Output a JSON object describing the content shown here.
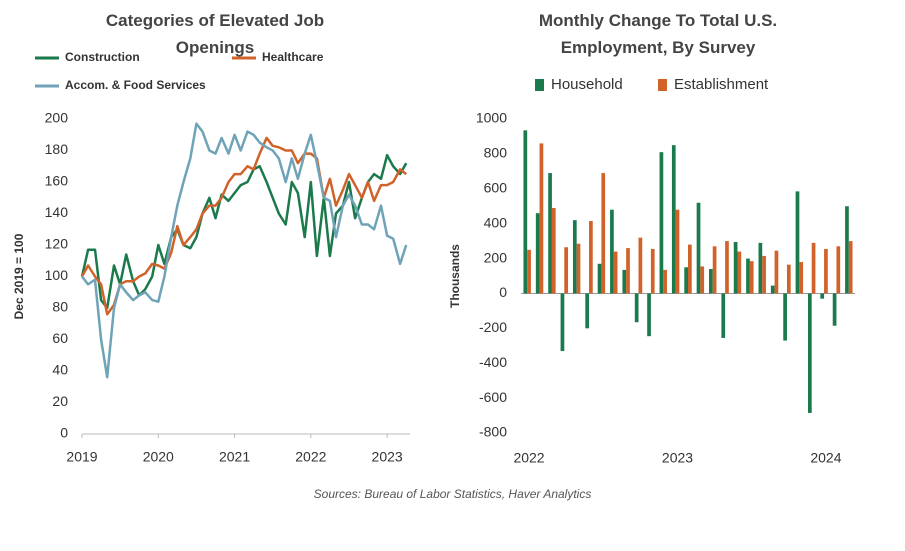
{
  "chart_data": [
    {
      "type": "line",
      "title": "Categories of Elevated Job Openings",
      "ylabel": "Dec 2019 = 100",
      "xlim": [
        2019,
        2023.3
      ],
      "xticks": [
        2019,
        2020,
        2021,
        2022,
        2023
      ],
      "ylim": [
        0,
        200
      ],
      "yticks": [
        0,
        20,
        40,
        60,
        80,
        100,
        120,
        140,
        160,
        180,
        200
      ],
      "x": [
        2019,
        2019.08,
        2019.17,
        2019.25,
        2019.33,
        2019.42,
        2019.5,
        2019.58,
        2019.67,
        2019.75,
        2019.83,
        2019.92,
        2020,
        2020.08,
        2020.17,
        2020.25,
        2020.33,
        2020.42,
        2020.5,
        2020.58,
        2020.67,
        2020.75,
        2020.83,
        2020.92,
        2021,
        2021.08,
        2021.17,
        2021.25,
        2021.33,
        2021.42,
        2021.5,
        2021.58,
        2021.67,
        2021.75,
        2021.83,
        2021.92,
        2022,
        2022.08,
        2022.17,
        2022.25,
        2022.33,
        2022.42,
        2022.5,
        2022.58,
        2022.67,
        2022.75,
        2022.83,
        2022.92,
        2023,
        2023.08,
        2023.17,
        2023.25
      ],
      "series": [
        {
          "name": "Construction",
          "color": "#1b7a4c",
          "values": [
            100,
            117,
            117,
            85,
            80,
            107,
            95,
            114,
            97,
            88,
            92,
            100,
            120,
            108,
            125,
            130,
            120,
            118,
            125,
            140,
            150,
            137,
            152,
            148,
            153,
            158,
            160,
            168,
            170,
            160,
            150,
            140,
            133,
            160,
            153,
            125,
            160,
            113,
            150,
            113,
            140,
            145,
            160,
            137,
            150,
            160,
            165,
            162,
            177,
            170,
            165,
            172
          ]
        },
        {
          "name": "Healthcare",
          "color": "#d0622a",
          "values": [
            100,
            107,
            100,
            95,
            76,
            82,
            95,
            97,
            97,
            100,
            102,
            108,
            107,
            105,
            115,
            132,
            120,
            125,
            130,
            140,
            145,
            145,
            150,
            160,
            165,
            165,
            170,
            168,
            178,
            188,
            183,
            182,
            180,
            180,
            172,
            178,
            178,
            175,
            150,
            162,
            145,
            155,
            165,
            158,
            150,
            160,
            148,
            158,
            158,
            160,
            168,
            165
          ]
        },
        {
          "name": "Accom. & Food Services",
          "color": "#6ea3b8",
          "values": [
            100,
            95,
            98,
            60,
            36,
            80,
            95,
            90,
            85,
            88,
            90,
            85,
            84,
            100,
            125,
            145,
            160,
            175,
            197,
            192,
            180,
            178,
            188,
            178,
            190,
            180,
            192,
            190,
            185,
            182,
            180,
            175,
            160,
            175,
            162,
            178,
            190,
            172,
            150,
            148,
            125,
            145,
            152,
            145,
            133,
            133,
            130,
            145,
            126,
            124,
            108,
            120
          ]
        }
      ]
    },
    {
      "type": "bar",
      "title": "Monthly Change To Total U.S. Employment, By Survey",
      "ylabel": "Thousands",
      "categories": [
        "2022",
        null,
        null,
        null,
        null,
        null,
        null,
        null,
        null,
        null,
        null,
        null,
        "2023",
        null,
        null,
        null,
        null,
        null,
        null,
        null,
        null,
        null,
        null,
        null,
        "2024",
        null,
        null
      ],
      "ylim": [
        -800,
        1000
      ],
      "yticks": [
        -800,
        -600,
        -400,
        -200,
        0,
        200,
        400,
        600,
        800,
        1000
      ],
      "series": [
        {
          "name": "Household",
          "color": "#1b7a4c",
          "values": [
            935,
            460,
            690,
            -330,
            420,
            -200,
            170,
            480,
            135,
            -165,
            -245,
            810,
            850,
            150,
            520,
            140,
            -255,
            295,
            200,
            290,
            45,
            -270,
            585,
            -685,
            -30,
            -185,
            500
          ]
        },
        {
          "name": "Establishment",
          "color": "#d0622a",
          "values": [
            250,
            860,
            490,
            265,
            285,
            415,
            690,
            240,
            260,
            320,
            255,
            135,
            480,
            280,
            155,
            270,
            300,
            240,
            185,
            215,
            245,
            165,
            180,
            290,
            255,
            270,
            300
          ]
        }
      ]
    }
  ],
  "source": "Sources: Bureau of Labor Statistics, Haver Analytics"
}
